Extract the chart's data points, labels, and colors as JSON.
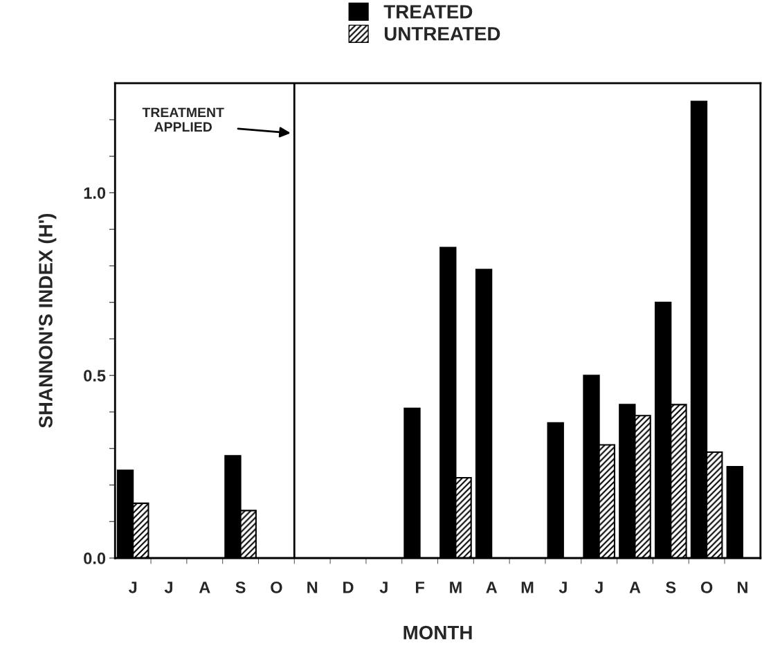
{
  "chart_data": {
    "type": "bar",
    "categories": [
      "J",
      "J",
      "A",
      "S",
      "O",
      "N",
      "D",
      "J",
      "F",
      "M",
      "A",
      "M",
      "J",
      "J",
      "A",
      "S",
      "O",
      "N"
    ],
    "series": [
      {
        "name": "TREATED",
        "color": "#000000",
        "values": [
          0.24,
          0,
          0,
          0.28,
          0,
          0,
          0,
          0,
          0.41,
          0.85,
          0.79,
          0,
          0.37,
          0.5,
          0.42,
          0.7,
          1.25,
          0.25
        ]
      },
      {
        "name": "UNTREATED",
        "color": "#000000",
        "values": [
          0.15,
          0,
          0,
          0.13,
          0,
          0,
          0,
          0,
          0,
          0.22,
          0,
          0,
          0,
          0.31,
          0.39,
          0.42,
          0.29,
          0
        ]
      }
    ],
    "xlabel": "MONTH",
    "ylabel": "SHANNON'S INDEX (H')",
    "ylim": [
      0,
      1.3
    ],
    "yticks": [
      {
        "value": 0,
        "label": "0.0"
      },
      {
        "value": 0.1,
        "label": null
      },
      {
        "value": 0.2,
        "label": null
      },
      {
        "value": 0.3,
        "label": null
      },
      {
        "value": 0.4,
        "label": null
      },
      {
        "value": 0.5,
        "label": "0.5"
      },
      {
        "value": 0.6,
        "label": null
      },
      {
        "value": 0.7,
        "label": null
      },
      {
        "value": 0.8,
        "label": null
      },
      {
        "value": 0.9,
        "label": null
      },
      {
        "value": 1.0,
        "label": "1.0"
      },
      {
        "value": 1.1,
        "label": null
      },
      {
        "value": 1.2,
        "label": null
      }
    ],
    "annotations": [
      "TREATMENT\nAPPLIED"
    ],
    "legend": "top",
    "grid": false
  }
}
